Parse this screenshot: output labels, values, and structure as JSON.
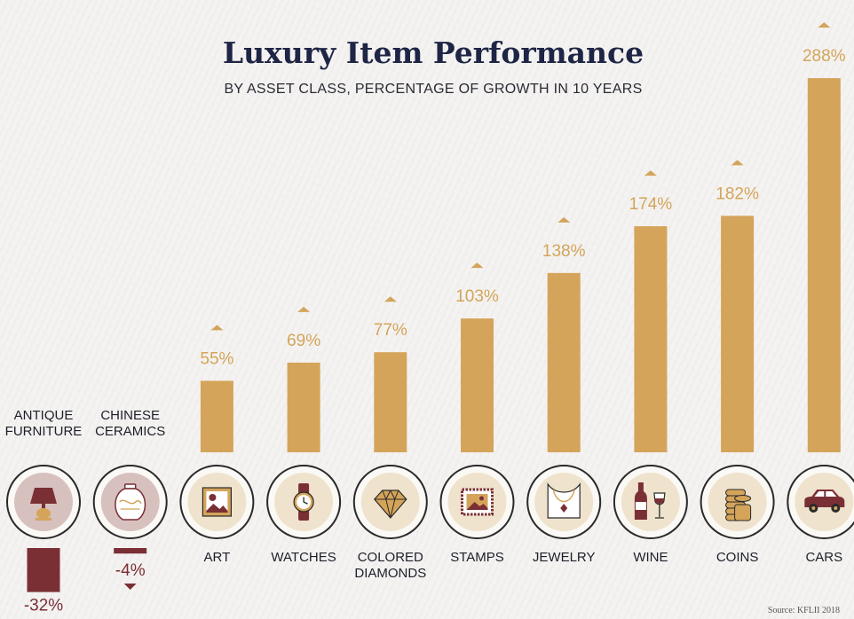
{
  "title": "Luxury Item Performance",
  "subtitle": "BY ASSET CLASS, PERCENTAGE OF GROWTH IN 10 YEARS",
  "source": "Source: KFLII 2018",
  "colors": {
    "positive": "#d4a45a",
    "negative": "#7a2f35",
    "positive_icon_bg": "#efe3cd",
    "negative_icon_bg": "#d7c1bf",
    "ring": "#2a2a2a",
    "label": "#1e1e2a"
  },
  "chart_data": {
    "type": "bar",
    "title": "Luxury Item Performance",
    "subtitle": "BY ASSET CLASS, PERCENTAGE OF GROWTH IN 10 YEARS",
    "xlabel": "",
    "ylabel": "",
    "unit": "%",
    "categories": [
      "ANTIQUE FURNITURE",
      "CHINESE CERAMICS",
      "ART",
      "WATCHES",
      "COLORED DIAMONDS",
      "STAMPS",
      "JEWELRY",
      "WINE",
      "COINS",
      "CARS"
    ],
    "values": [
      -32,
      -4,
      55,
      69,
      77,
      103,
      138,
      174,
      182,
      288
    ],
    "value_labels": [
      "-32%",
      "-4%",
      "55%",
      "69%",
      "77%",
      "103%",
      "138%",
      "174%",
      "182%",
      "288%"
    ],
    "category_lines": [
      [
        "ANTIQUE",
        "FURNITURE"
      ],
      [
        "CHINESE",
        "CERAMICS"
      ],
      [
        "ART"
      ],
      [
        "WATCHES"
      ],
      [
        "COLORED",
        "DIAMONDS"
      ],
      [
        "STAMPS"
      ],
      [
        "JEWELRY"
      ],
      [
        "WINE"
      ],
      [
        "COINS"
      ],
      [
        "CARS"
      ]
    ],
    "icons": [
      "lamp-icon",
      "vase-icon",
      "painting-icon",
      "watch-icon",
      "diamond-icon",
      "stamp-icon",
      "necklace-icon",
      "wine-icon",
      "coins-icon",
      "car-icon"
    ],
    "grid": false,
    "legend": "none"
  }
}
